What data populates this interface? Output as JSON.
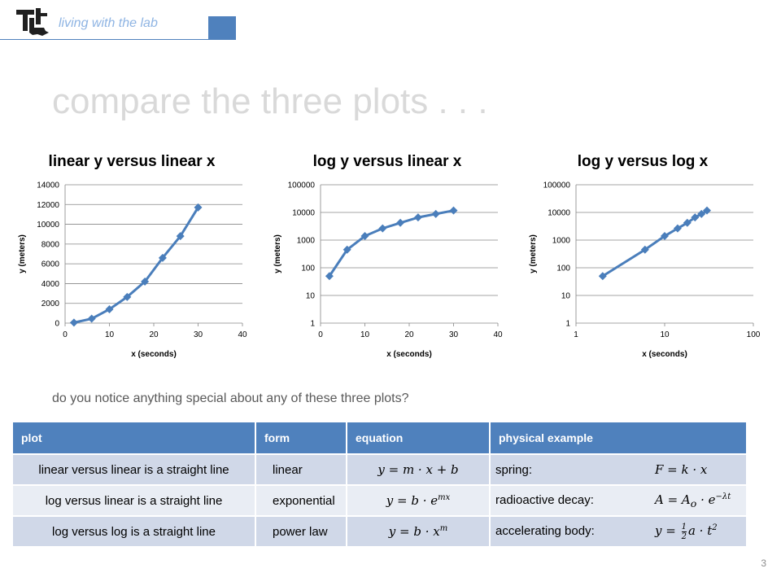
{
  "header": {
    "text": "living with the lab",
    "colors": {
      "accent": "#4f81bd",
      "header_text": "#8eb4e3"
    }
  },
  "logo": {
    "icon": "louisiana-tech-logo-icon",
    "text": "LT"
  },
  "slide": {
    "title": "compare the three plots . . .",
    "question": "do you notice anything special about any of these three plots?",
    "page_number": "3"
  },
  "chart_data": [
    {
      "type": "line",
      "title": "linear y versus linear x",
      "xlabel": "x (seconds)",
      "ylabel": "y (meters)",
      "xscale": "linear",
      "yscale": "linear",
      "xlim": [
        0,
        40
      ],
      "ylim": [
        0,
        14000
      ],
      "xticks": [
        "0",
        "10",
        "20",
        "30",
        "40"
      ],
      "yticks": [
        "0",
        "2000",
        "4000",
        "6000",
        "8000",
        "10000",
        "12000",
        "14000"
      ],
      "grid": "horizontal",
      "marker": "diamond",
      "color": "#4a7ebb",
      "series": [
        {
          "x": [
            2,
            6,
            10,
            14,
            18,
            22,
            26,
            30
          ],
          "y": [
            50,
            450,
            1400,
            2650,
            4200,
            6600,
            8800,
            11700
          ]
        }
      ]
    },
    {
      "type": "line",
      "title": "log y versus linear x",
      "xlabel": "x (seconds)",
      "ylabel": "y (meters)",
      "xscale": "linear",
      "yscale": "log",
      "xlim": [
        0,
        40
      ],
      "ylim": [
        1,
        100000
      ],
      "xticks": [
        "0",
        "10",
        "20",
        "30",
        "40"
      ],
      "yticks": [
        "1",
        "10",
        "100",
        "1000",
        "10000",
        "100000"
      ],
      "grid": "horizontal",
      "marker": "diamond",
      "color": "#4a7ebb",
      "series": [
        {
          "x": [
            2,
            6,
            10,
            14,
            18,
            22,
            26,
            30
          ],
          "y": [
            50,
            450,
            1400,
            2650,
            4200,
            6600,
            8800,
            11700
          ]
        }
      ]
    },
    {
      "type": "line",
      "title": "log y versus log x",
      "xlabel": "x (seconds)",
      "ylabel": "y (meters)",
      "xscale": "log",
      "yscale": "log",
      "xlim": [
        1,
        100
      ],
      "ylim": [
        1,
        100000
      ],
      "xticks": [
        "1",
        "10",
        "100"
      ],
      "yticks": [
        "1",
        "10",
        "100",
        "1000",
        "10000",
        "100000"
      ],
      "grid": "horizontal",
      "marker": "diamond",
      "color": "#4a7ebb",
      "series": [
        {
          "x": [
            2,
            6,
            10,
            14,
            18,
            22,
            26,
            30
          ],
          "y": [
            50,
            450,
            1400,
            2650,
            4200,
            6600,
            8800,
            11700
          ]
        }
      ]
    }
  ],
  "table": {
    "headers": [
      "plot",
      "form",
      "equation",
      "physical example"
    ],
    "rows": [
      {
        "plot": "linear versus linear is a straight line",
        "form": "linear",
        "equation": "y = m · x + b",
        "example_label": "spring:",
        "example_eq": "F = k · x"
      },
      {
        "plot": "log versus linear is a straight line",
        "form": "exponential",
        "equation_base": "y = b · e",
        "equation_sup": "mx",
        "example_label": "radioactive decay:",
        "example_eq_base": "A = A",
        "example_eq_sub": "o",
        "example_eq_mid": " · e",
        "example_eq_sup": "−λt"
      },
      {
        "plot": "log versus log is a straight line",
        "form": "power law",
        "equation_base": "y = b · x",
        "equation_sup": "m",
        "example_label": "accelerating body:",
        "example_eq_left": "y = ",
        "example_frac_num": "1",
        "example_frac_den": "2",
        "example_eq_right": "a · t",
        "example_eq_sup": "2"
      }
    ],
    "colors": {
      "header_bg": "#4f81bd",
      "row_odd": "#d0d8e8",
      "row_even": "#e9edf4"
    }
  }
}
